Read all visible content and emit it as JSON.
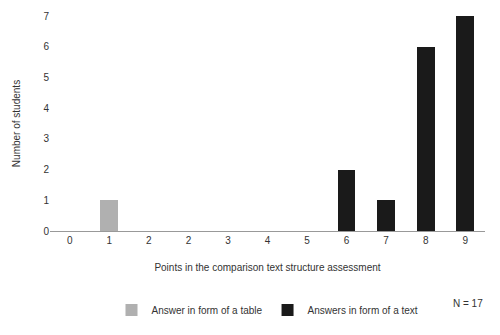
{
  "chart_data": {
    "type": "bar",
    "x_label": "Points in the comparison text structure assessment",
    "y_label": "Number of students",
    "categories": [
      "0",
      "1",
      "2",
      "2",
      "3",
      "4",
      "5",
      "6",
      "7",
      "8",
      "9"
    ],
    "series": [
      {
        "name": "Answers in form of a text",
        "color": "#1a1a1a",
        "values": [
          0,
          0,
          0,
          0,
          0,
          0,
          0,
          2,
          1,
          6,
          7
        ]
      },
      {
        "name": "Answer in form of a table",
        "color": "#b0b0b0",
        "values": [
          0,
          1,
          0,
          0,
          0,
          0,
          0,
          0,
          0,
          0,
          0
        ]
      }
    ],
    "ylim": [
      0,
      7
    ],
    "yticks": [
      0,
      1,
      2,
      3,
      4,
      5,
      6,
      7
    ],
    "stacked": true,
    "grid": false,
    "legend": "bottom",
    "annotations": [
      {
        "text": "N = 17"
      }
    ]
  }
}
